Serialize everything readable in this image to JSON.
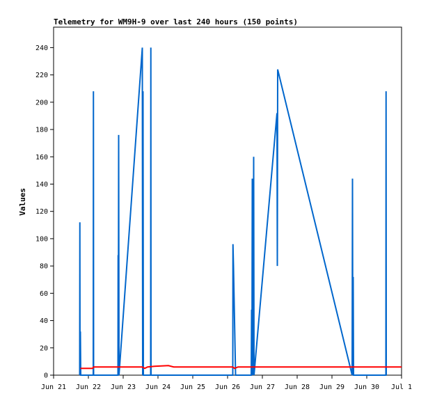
{
  "chart_data": {
    "type": "line",
    "title": "Telemetry for WM9H-9 over last 240 hours (150 points)",
    "xlabel": "",
    "ylabel": "Values",
    "x_ticks": [
      "Jun 21",
      "Jun 22",
      "Jun 23",
      "Jun 24",
      "Jun 25",
      "Jun 26",
      "Jun 27",
      "Jun 28",
      "Jun 29",
      "Jun 30",
      "Jul 1"
    ],
    "xlim_days": [
      0,
      10
    ],
    "ylim": [
      0,
      255
    ],
    "y_ticks": [
      0,
      20,
      40,
      60,
      80,
      100,
      120,
      140,
      160,
      180,
      200,
      220,
      240
    ],
    "grid": false,
    "series": [
      {
        "color": "#0066cc",
        "points": [
          [
            0.75,
            0
          ],
          [
            0.755,
            112
          ],
          [
            0.76,
            0
          ],
          [
            0.77,
            32
          ],
          [
            0.78,
            0
          ],
          [
            1.14,
            0
          ],
          [
            1.145,
            208
          ],
          [
            1.15,
            0
          ],
          [
            1.85,
            0
          ],
          [
            1.855,
            88
          ],
          [
            1.86,
            0
          ],
          [
            1.87,
            176
          ],
          [
            1.88,
            0
          ],
          [
            2.55,
            240
          ],
          [
            2.56,
            0
          ],
          [
            2.57,
            208
          ],
          [
            2.58,
            0
          ],
          [
            2.79,
            0
          ],
          [
            2.795,
            240
          ],
          [
            2.8,
            0
          ],
          [
            5.15,
            0
          ],
          [
            5.155,
            96
          ],
          [
            5.17,
            80
          ],
          [
            5.23,
            0
          ],
          [
            5.68,
            0
          ],
          [
            5.69,
            48
          ],
          [
            5.7,
            0
          ],
          [
            5.71,
            144
          ],
          [
            5.72,
            0
          ],
          [
            5.73,
            112
          ],
          [
            5.74,
            0
          ],
          [
            5.75,
            160
          ],
          [
            5.76,
            0
          ],
          [
            6.42,
            192
          ],
          [
            6.43,
            80
          ],
          [
            6.44,
            224
          ],
          [
            8.58,
            0
          ],
          [
            8.59,
            144
          ],
          [
            8.6,
            0
          ],
          [
            8.61,
            72
          ],
          [
            8.62,
            0
          ],
          [
            9.55,
            0
          ],
          [
            9.555,
            208
          ],
          [
            9.56,
            0
          ]
        ]
      },
      {
        "color": "#ff0000",
        "points": [
          [
            0.77,
            5
          ],
          [
            1.12,
            5
          ],
          [
            1.15,
            6
          ],
          [
            2.55,
            6
          ],
          [
            2.62,
            5
          ],
          [
            2.7,
            6
          ],
          [
            2.9,
            6.5
          ],
          [
            3.3,
            7
          ],
          [
            3.45,
            6
          ],
          [
            5.15,
            6
          ],
          [
            5.2,
            5
          ],
          [
            5.3,
            6
          ],
          [
            10.0,
            6
          ]
        ]
      }
    ]
  }
}
